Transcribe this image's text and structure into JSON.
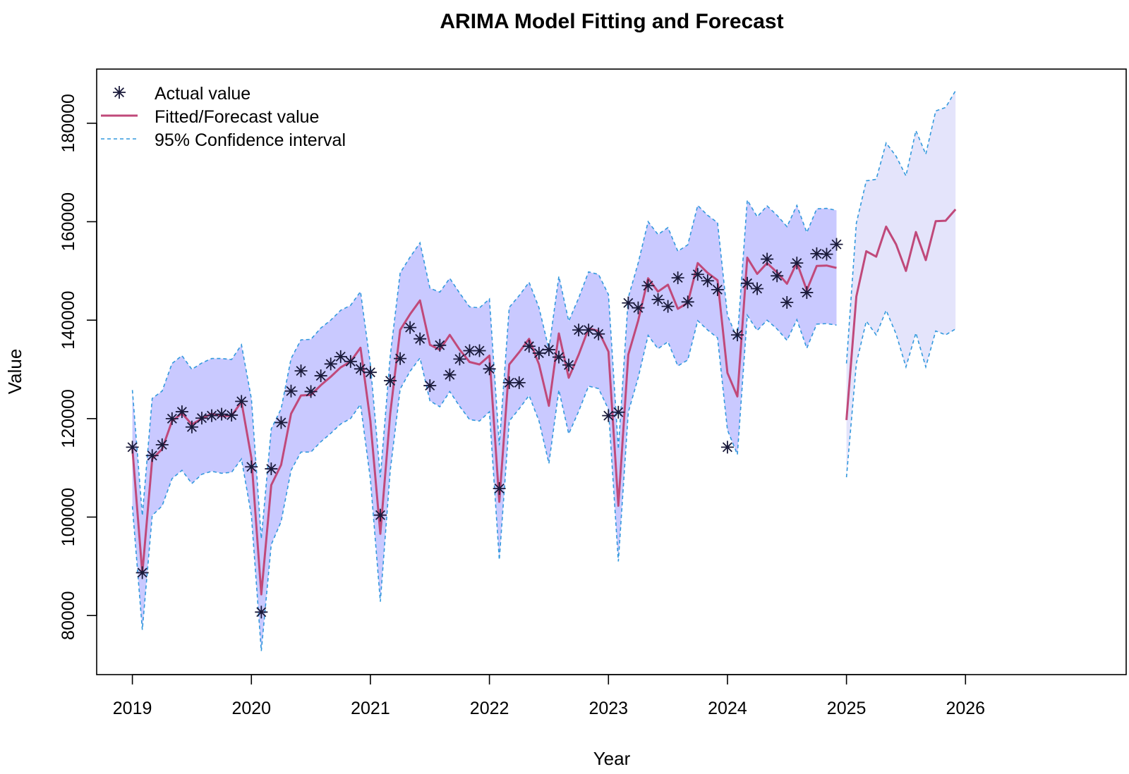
{
  "chart_data": {
    "type": "line",
    "title": "ARIMA Model Fitting and Forecast",
    "xlabel": "Year",
    "ylabel": "Value",
    "xlim": [
      2018.7,
      2027.35
    ],
    "ylim": [
      68000,
      191000
    ],
    "x_ticks": [
      2019,
      2020,
      2021,
      2022,
      2023,
      2024,
      2025,
      2026
    ],
    "x_tick_labels": [
      "2019",
      "2020",
      "2021",
      "2022",
      "2023",
      "2024",
      "2025",
      "2026"
    ],
    "y_ticks": [
      80000,
      100000,
      120000,
      140000,
      160000,
      180000
    ],
    "y_tick_labels": [
      "80000",
      "100000",
      "120000",
      "140000",
      "160000",
      "180000"
    ],
    "legend": {
      "position": "top-left",
      "entries": [
        "Actual value",
        "Fitted/Forecast value",
        "95% Confidence interval"
      ]
    },
    "colors": {
      "actual": "#1a1a3a",
      "fitted": "#c0497a",
      "ci_line": "#3399dd",
      "ci_fill_fit": "#c9c9ff",
      "ci_fill_forecast": "#e4e4fb"
    },
    "series": [
      {
        "name": "Actual value",
        "start_year": 2019,
        "step": 0.08333,
        "values": [
          114200,
          88700,
          112500,
          114700,
          120000,
          121400,
          118300,
          120100,
          120600,
          120900,
          120700,
          123500,
          110200,
          80700,
          109800,
          119200,
          125600,
          129700,
          125500,
          128700,
          131100,
          132600,
          131600,
          130100,
          129400,
          100400,
          127700,
          132200,
          138500,
          136200,
          126700,
          134900,
          128900,
          132100,
          133800,
          133800,
          130100,
          105800,
          127300,
          127300,
          134700,
          133300,
          134000,
          132500,
          130900,
          138000,
          138000,
          137200,
          120600,
          121300,
          143500,
          142500,
          147000,
          144200,
          142800,
          148600,
          143700,
          149300,
          148000,
          146200,
          114200,
          137000,
          147500,
          146400,
          152400,
          149000,
          143600,
          151600,
          145600,
          153500,
          153400,
          155400
        ]
      },
      {
        "name": "Fitted/Forecast value",
        "start_year": 2019,
        "step": 0.08333,
        "values": [
          114000,
          88500,
          111800,
          113800,
          119500,
          121100,
          118800,
          120000,
          121000,
          120500,
          120600,
          123400,
          112000,
          84300,
          106500,
          110600,
          121000,
          124700,
          124800,
          126800,
          128500,
          130400,
          131600,
          134400,
          119500,
          96600,
          121000,
          138000,
          141200,
          144000,
          135000,
          134000,
          137000,
          134000,
          131500,
          131000,
          132800,
          103100,
          131000,
          133500,
          136200,
          131000,
          122600,
          137300,
          128300,
          133000,
          138300,
          137800,
          133600,
          102300,
          133000,
          139900,
          148500,
          145800,
          147200,
          142300,
          143500,
          151600,
          149600,
          148100,
          129300,
          124500,
          152700,
          149400,
          151600,
          149700,
          147400,
          151700,
          146100,
          151000,
          151100,
          150600
        ],
        "forecast_values": [
          119700,
          144800,
          154000,
          152900,
          159000,
          155400,
          150000,
          157900,
          152200,
          160100,
          160200,
          162500
        ]
      },
      {
        "name": "95% Confidence interval",
        "start_year": 2019,
        "step": 0.08333,
        "upper": [
          125800,
          100300,
          124100,
          125600,
          131200,
          132800,
          130000,
          131300,
          132200,
          132200,
          132000,
          135000,
          124000,
          95600,
          117900,
          122000,
          132200,
          136000,
          136100,
          138400,
          140000,
          142000,
          143000,
          145800,
          131000,
          108100,
          132700,
          149600,
          152800,
          155700,
          146500,
          145700,
          148500,
          145500,
          142700,
          142500,
          144300,
          114600,
          142600,
          145000,
          147700,
          142500,
          134100,
          148900,
          139800,
          144500,
          149800,
          149300,
          145200,
          113800,
          144600,
          151600,
          160000,
          157400,
          158800,
          154000,
          155300,
          163300,
          161300,
          159800,
          141000,
          136200,
          164400,
          161000,
          163200,
          161300,
          159000,
          163300,
          157800,
          162600,
          162700,
          162300
        ],
        "lower": [
          102200,
          77100,
          100300,
          102300,
          107800,
          109500,
          106800,
          108700,
          109300,
          108900,
          109100,
          111800,
          100300,
          72800,
          94400,
          99100,
          109500,
          113200,
          113200,
          115300,
          117000,
          118900,
          120000,
          122900,
          107700,
          82800,
          109400,
          126000,
          129600,
          132300,
          123600,
          122400,
          125500,
          122500,
          119800,
          119500,
          121400,
          91300,
          119500,
          122000,
          124700,
          119500,
          110900,
          125800,
          116900,
          121500,
          126600,
          126100,
          121900,
          91000,
          121300,
          128300,
          136900,
          134200,
          135600,
          130700,
          131900,
          139900,
          138000,
          136400,
          117700,
          112700,
          141000,
          137900,
          140000,
          138200,
          135900,
          140100,
          134300,
          139200,
          139300,
          139000
        ],
        "forecast_upper": [
          131200,
          159700,
          168300,
          168600,
          176000,
          173300,
          169300,
          178500,
          173700,
          182500,
          183200,
          186600
        ],
        "forecast_lower": [
          108100,
          131200,
          139800,
          137000,
          142000,
          137200,
          130500,
          137400,
          130500,
          137800,
          137000,
          138200
        ]
      }
    ]
  }
}
